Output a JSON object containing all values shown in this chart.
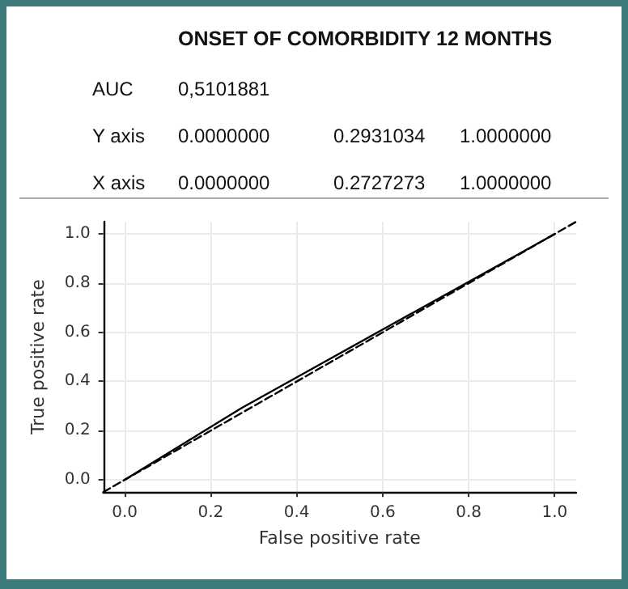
{
  "chart_data": [
    {
      "type": "other",
      "title": "ONSET OF COMORBIDITY 12 MONTHS",
      "annotations": [
        "AUC\t0,5101881",
        "Y axis\t0.0000000\t0.2931034\t1.0000000",
        "X axis\t0.0000000\t0.2727273\t1.0000000"
      ]
    },
    {
      "type": "line",
      "xlabel": "False positive rate",
      "ylabel": "True positive rate",
      "xlim": [
        -0.05,
        1.05
      ],
      "ylim": [
        -0.05,
        1.05
      ],
      "xticks": [
        {
          "value": 0,
          "label": "0.0"
        },
        {
          "value": 0.2,
          "label": "0.2"
        },
        {
          "value": 0.4,
          "label": "0.4"
        },
        {
          "value": 0.6,
          "label": "0.6"
        },
        {
          "value": 0.8,
          "label": "0.8"
        },
        {
          "value": 1,
          "label": "1.0"
        }
      ],
      "yticks": [
        {
          "value": 0,
          "label": "0.0"
        },
        {
          "value": 0.2,
          "label": "0.2"
        },
        {
          "value": 0.4,
          "label": "0.4"
        },
        {
          "value": 0.6,
          "label": "0.6"
        },
        {
          "value": 0.8,
          "label": "0.8"
        },
        {
          "value": 1,
          "label": "1.0"
        }
      ],
      "grid": true,
      "marker": "none",
      "series": [
        {
          "color": "#000000",
          "x": [
            0,
            0.2727273,
            1
          ],
          "values": [
            0,
            0.2931034,
            1
          ],
          "line_style": "solid"
        },
        {
          "color": "#000000",
          "x": [
            -0.05,
            1.05
          ],
          "values": [
            -0.05,
            1.05
          ],
          "line_style": "dashed"
        }
      ]
    }
  ]
}
